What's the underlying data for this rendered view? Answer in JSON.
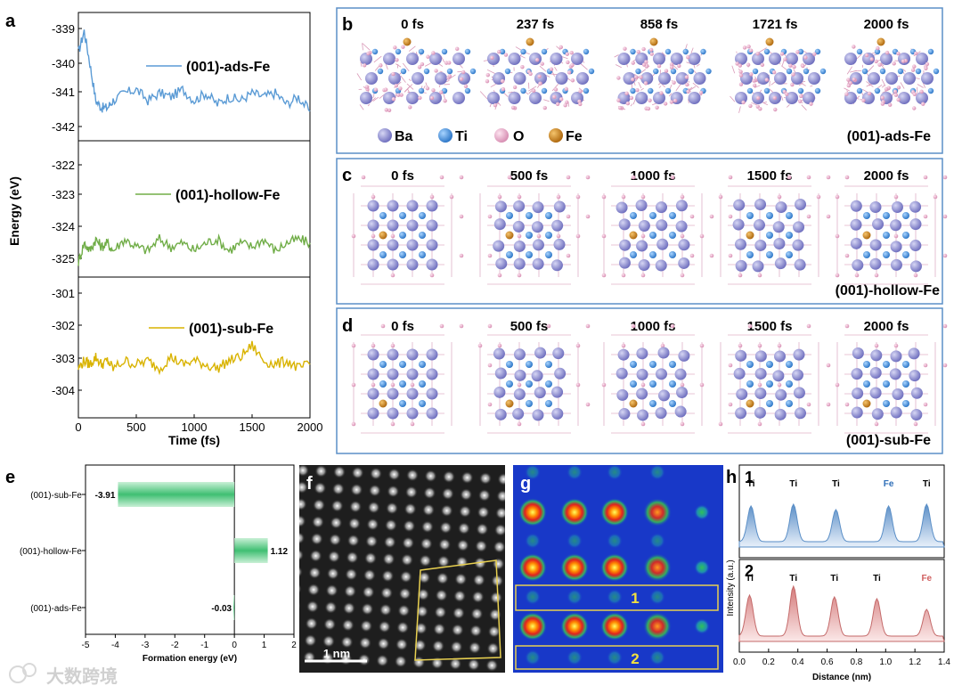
{
  "panel_labels": {
    "a": "a",
    "b": "b",
    "c": "c",
    "d": "d",
    "e": "e",
    "f": "f",
    "g": "g",
    "h": "h"
  },
  "panel_a": {
    "ylabel": "Energy (eV)",
    "xlabel": "Time (fs)",
    "xticks": [
      "0",
      "500",
      "1000",
      "1500",
      "2000"
    ],
    "subplots": [
      {
        "legend": "(001)-ads-Fe",
        "color": "#5b9bd5",
        "yticks": [
          "-339",
          "-340",
          "-341",
          "-342"
        ]
      },
      {
        "legend": "(001)-hollow-Fe",
        "color": "#70ad47",
        "yticks": [
          "-322",
          "-323",
          "-324",
          "-325"
        ]
      },
      {
        "legend": "(001)-sub-Fe",
        "color": "#d9b300",
        "yticks": [
          "-301",
          "-302",
          "-303",
          "-304"
        ]
      }
    ]
  },
  "panel_b": {
    "times": [
      "0 fs",
      "237 fs",
      "858 fs",
      "1721 fs",
      "2000 fs"
    ],
    "legend": [
      {
        "label": "Ba",
        "color": "#8f8fd6"
      },
      {
        "label": "Ti",
        "color": "#4a90d9"
      },
      {
        "label": "O",
        "color": "#e8a8c8"
      },
      {
        "label": "Fe",
        "color": "#d08a20"
      }
    ],
    "model": "(001)-ads-Fe"
  },
  "panel_c": {
    "times": [
      "0 fs",
      "500 fs",
      "1000 fs",
      "1500 fs",
      "2000 fs"
    ],
    "model": "(001)-hollow-Fe"
  },
  "panel_d": {
    "times": [
      "0 fs",
      "500 fs",
      "1000 fs",
      "1500 fs",
      "2000 fs"
    ],
    "model": "(001)-sub-Fe"
  },
  "panel_e": {
    "xlabel": "Formation energy (eV)",
    "xticks": [
      "-5",
      "-4",
      "-3",
      "-2",
      "-1",
      "0",
      "1",
      "2"
    ],
    "categories": [
      "(001)-sub-Fe",
      "(001)-hollow-Fe",
      "(001)-ads-Fe"
    ],
    "value_labels": [
      "-3.91",
      "1.12",
      "-0.03"
    ]
  },
  "panel_f": {
    "scalebar": "1 nm"
  },
  "panel_g": {
    "box_labels": [
      "1",
      "2"
    ]
  },
  "panel_h": {
    "sub_labels": [
      "1",
      "2"
    ],
    "profile1_peaks": [
      "Ti",
      "Ti",
      "Ti",
      "Fe",
      "Ti"
    ],
    "profile2_peaks": [
      "Ti",
      "Ti",
      "Ti",
      "Ti",
      "Fe"
    ],
    "ylabel": "Intensity (a.u.)",
    "xlabel": "Distance (nm)",
    "xticks": [
      "0.0",
      "0.2",
      "0.4",
      "0.6",
      "0.8",
      "1.0",
      "1.2",
      "1.4"
    ]
  },
  "watermark": "大数跨境",
  "chart_data": [
    {
      "type": "line",
      "x": [
        0,
        50,
        100,
        150,
        200,
        250,
        300,
        400,
        500,
        600,
        700,
        800,
        900,
        1000,
        1100,
        1200,
        1300,
        1400,
        1500,
        1600,
        1700,
        1800,
        1900,
        2000
      ],
      "series": [
        {
          "name": "(001)-ads-Fe",
          "values": [
            -339.9,
            -339.3,
            -340.2,
            -341.2,
            -341.4,
            -341.4,
            -341.2,
            -341.0,
            -340.9,
            -341.2,
            -341.0,
            -341.1,
            -340.9,
            -341.2,
            -341.0,
            -341.3,
            -341.1,
            -341.2,
            -341.0,
            -341.1,
            -341.0,
            -341.3,
            -341.1,
            -341.5
          ],
          "ylim": [
            -342.3,
            -338.8
          ]
        },
        {
          "name": "(001)-hollow-Fe",
          "values": [
            -324.9,
            -324.4,
            -324.6,
            -324.3,
            -324.5,
            -324.4,
            -324.6,
            -324.3,
            -324.5,
            -324.6,
            -324.3,
            -324.5,
            -324.4,
            -324.6,
            -324.4,
            -324.3,
            -324.6,
            -324.4,
            -324.5,
            -324.3,
            -324.6,
            -324.4,
            -324.3,
            -324.4
          ],
          "ylim": [
            -325.3,
            -321.7
          ]
        },
        {
          "name": "(001)-sub-Fe",
          "values": [
            -303.1,
            -302.9,
            -303.0,
            -302.8,
            -303.0,
            -302.9,
            -303.1,
            -302.9,
            -303.0,
            -302.9,
            -303.1,
            -302.8,
            -303.0,
            -302.9,
            -303.0,
            -303.1,
            -302.9,
            -302.8,
            -302.5,
            -302.9,
            -303.0,
            -302.9,
            -303.1,
            -303.0
          ],
          "ylim": [
            -304.4,
            -300.7
          ]
        }
      ],
      "xlabel": "Time (fs)",
      "ylabel": "Energy (eV)",
      "xlim": [
        0,
        2000
      ]
    },
    {
      "type": "bar",
      "categories": [
        "(001)-sub-Fe",
        "(001)-hollow-Fe",
        "(001)-ads-Fe"
      ],
      "values": [
        -3.91,
        1.12,
        -0.03
      ],
      "xlabel": "Formation energy (eV)",
      "xlim": [
        -5,
        2
      ]
    }
  ]
}
